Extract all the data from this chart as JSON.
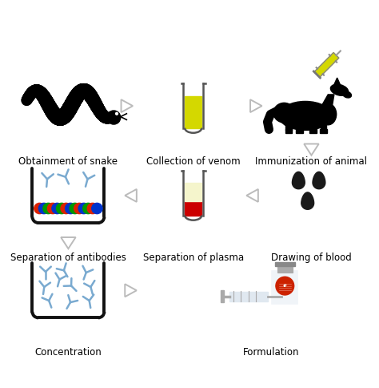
{
  "background_color": "#ffffff",
  "steps": [
    {
      "label": "Obtainment of snake"
    },
    {
      "label": "Collection of venom"
    },
    {
      "label": "Immunization of animal"
    },
    {
      "label": "Separation of antibodies"
    },
    {
      "label": "Separation of plasma"
    },
    {
      "label": "Drawing of blood"
    },
    {
      "label": "Concentration"
    },
    {
      "label": "Formulation"
    }
  ],
  "arrow_color": "#bbbbbb",
  "tube_outline": "#555555",
  "tube_yellow": "#d4d800",
  "tube_red": "#cc0000",
  "tube_pale": "#f5f5cc",
  "antibody_color": "#7aaad0",
  "bead_colors": [
    "#dd2200",
    "#0033cc",
    "#009900"
  ],
  "blood_drop_color": "#1a1a1a",
  "container_outline": "#111111",
  "label_fontsize": 8.5
}
